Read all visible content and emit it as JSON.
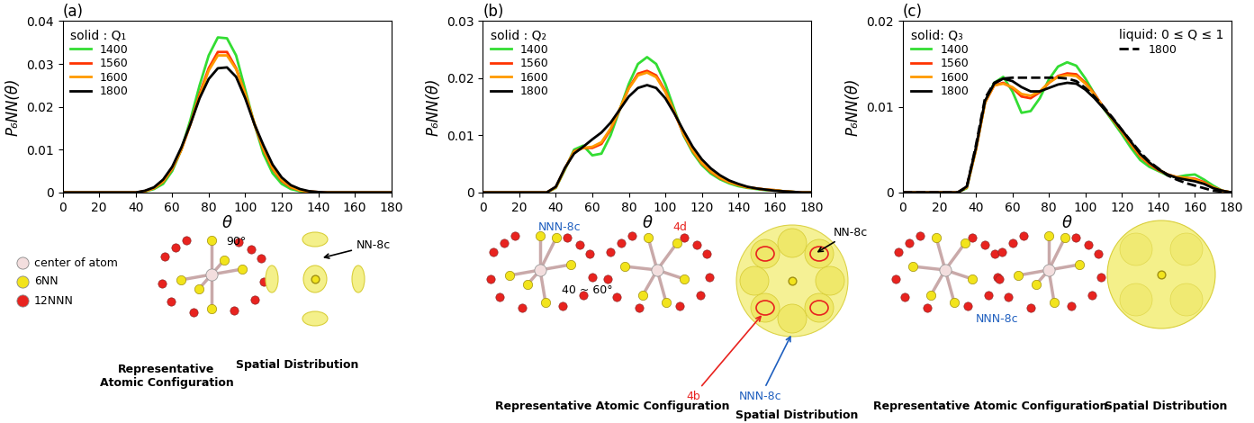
{
  "chart_data": [
    {
      "type": "line",
      "panel": "(a)",
      "x_label": "θ",
      "y_label": "P₆NN(θ)",
      "x": [
        0,
        5,
        10,
        15,
        20,
        25,
        30,
        35,
        40,
        45,
        50,
        55,
        60,
        65,
        70,
        75,
        80,
        85,
        90,
        95,
        100,
        105,
        110,
        115,
        120,
        125,
        130,
        135,
        140,
        145,
        150,
        155,
        160,
        165,
        170,
        175,
        180
      ],
      "xlim": [
        0,
        180
      ],
      "xticks": [
        0,
        20,
        40,
        60,
        80,
        100,
        120,
        140,
        160,
        180
      ],
      "ylim": [
        0,
        0.04
      ],
      "yticks": [
        0,
        0.01,
        0.02,
        0.03,
        0.04
      ],
      "series_groups": [
        {
          "title": "solid : Q₁",
          "legend": "upper left",
          "series": [
            {
              "name": "1400",
              "color": "#33dd33",
              "line_style": "solid",
              "values": [
                0,
                0,
                0,
                0,
                0,
                0,
                0,
                0,
                0,
                0.0002,
                0.0008,
                0.002,
                0.005,
                0.01,
                0.017,
                0.025,
                0.032,
                0.0362,
                0.036,
                0.032,
                0.024,
                0.016,
                0.009,
                0.0045,
                0.002,
                0.0008,
                0.0003,
                0.0001,
                0,
                0,
                0,
                0,
                0,
                0,
                0,
                0,
                0
              ]
            },
            {
              "name": "1560",
              "color": "#ff3300",
              "line_style": "solid",
              "values": [
                0,
                0,
                0,
                0,
                0,
                0,
                0,
                0,
                0,
                0.0003,
                0.001,
                0.0025,
                0.0055,
                0.01,
                0.016,
                0.023,
                0.029,
                0.0328,
                0.0328,
                0.029,
                0.023,
                0.016,
                0.01,
                0.0055,
                0.0027,
                0.0012,
                0.0005,
                0.0002,
                0.0001,
                0,
                0,
                0,
                0,
                0,
                0,
                0,
                0
              ]
            },
            {
              "name": "1600",
              "color": "#ff9900",
              "line_style": "solid",
              "values": [
                0,
                0,
                0,
                0,
                0,
                0,
                0,
                0,
                0,
                0.0003,
                0.001,
                0.0026,
                0.0057,
                0.01,
                0.016,
                0.0225,
                0.0285,
                0.032,
                0.032,
                0.0288,
                0.023,
                0.0162,
                0.0102,
                0.0057,
                0.0029,
                0.0013,
                0.0005,
                0.0002,
                0.0001,
                0,
                0,
                0,
                0,
                0,
                0,
                0,
                0
              ]
            },
            {
              "name": "1800",
              "color": "#000000",
              "line_style": "solid",
              "values": [
                0,
                0,
                0,
                0,
                0,
                0,
                0,
                0,
                0,
                0.0004,
                0.0012,
                0.003,
                0.006,
                0.0105,
                0.016,
                0.022,
                0.0265,
                0.029,
                0.0292,
                0.027,
                0.022,
                0.016,
                0.011,
                0.0065,
                0.0035,
                0.0017,
                0.0008,
                0.0003,
                0.0001,
                0,
                0,
                0,
                0,
                0,
                0,
                0,
                0
              ]
            }
          ]
        }
      ]
    },
    {
      "type": "line",
      "panel": "(b)",
      "x_label": "θ",
      "y_label": "P₆NN(θ)",
      "x": [
        0,
        5,
        10,
        15,
        20,
        25,
        30,
        35,
        40,
        45,
        50,
        55,
        60,
        65,
        70,
        75,
        80,
        85,
        90,
        95,
        100,
        105,
        110,
        115,
        120,
        125,
        130,
        135,
        140,
        145,
        150,
        155,
        160,
        165,
        170,
        175,
        180
      ],
      "xlim": [
        0,
        180
      ],
      "xticks": [
        0,
        20,
        40,
        60,
        80,
        100,
        120,
        140,
        160,
        180
      ],
      "ylim": [
        0,
        0.03
      ],
      "yticks": [
        0,
        0.01,
        0.02,
        0.03
      ],
      "series_groups": [
        {
          "title": "solid : Q₂",
          "legend": "upper left",
          "series": [
            {
              "name": "1400",
              "color": "#33dd33",
              "line_style": "solid",
              "values": [
                0,
                0,
                0,
                0,
                0,
                0,
                0,
                0,
                0.0008,
                0.004,
                0.0075,
                0.0082,
                0.0065,
                0.0068,
                0.01,
                0.0145,
                0.019,
                0.0225,
                0.0237,
                0.0225,
                0.019,
                0.0145,
                0.01,
                0.007,
                0.0048,
                0.0033,
                0.0023,
                0.0016,
                0.0011,
                0.0008,
                0.0006,
                0.0004,
                0.0004,
                0.0002,
                0.0001,
                0,
                0
              ]
            },
            {
              "name": "1560",
              "color": "#ff3300",
              "line_style": "solid",
              "values": [
                0,
                0,
                0,
                0,
                0,
                0,
                0,
                0,
                0.0009,
                0.0042,
                0.0072,
                0.0078,
                0.0078,
                0.0085,
                0.011,
                0.0145,
                0.0183,
                0.0208,
                0.0213,
                0.0205,
                0.0178,
                0.014,
                0.0102,
                0.0073,
                0.0051,
                0.0036,
                0.0025,
                0.0018,
                0.0013,
                0.0009,
                0.0007,
                0.0005,
                0.0004,
                0.0002,
                0.0001,
                0,
                0
              ]
            },
            {
              "name": "1600",
              "color": "#ff9900",
              "line_style": "solid",
              "values": [
                0,
                0,
                0,
                0,
                0,
                0,
                0,
                0,
                0.0009,
                0.0042,
                0.0071,
                0.0078,
                0.008,
                0.0088,
                0.0112,
                0.0146,
                0.0182,
                0.0205,
                0.021,
                0.0202,
                0.0176,
                0.014,
                0.0103,
                0.0074,
                0.0052,
                0.0037,
                0.0026,
                0.0018,
                0.0013,
                0.0009,
                0.0007,
                0.0005,
                0.0004,
                0.0002,
                0.0001,
                0,
                0
              ]
            },
            {
              "name": "1800",
              "color": "#000000",
              "line_style": "solid",
              "values": [
                0,
                0,
                0,
                0,
                0,
                0,
                0,
                0,
                0.001,
                0.0043,
                0.0068,
                0.008,
                0.0093,
                0.0105,
                0.0122,
                0.0145,
                0.0168,
                0.0183,
                0.0188,
                0.0183,
                0.0165,
                0.0138,
                0.0108,
                0.008,
                0.0058,
                0.0042,
                0.003,
                0.0021,
                0.0015,
                0.001,
                0.0007,
                0.0005,
                0.0003,
                0.0002,
                0.0001,
                0,
                0
              ]
            }
          ]
        }
      ]
    },
    {
      "type": "line",
      "panel": "(c)",
      "x_label": "θ",
      "y_label": "P₆NN(θ)",
      "x": [
        0,
        5,
        10,
        15,
        20,
        25,
        30,
        35,
        40,
        45,
        50,
        55,
        60,
        65,
        70,
        75,
        80,
        85,
        90,
        95,
        100,
        105,
        110,
        115,
        120,
        125,
        130,
        135,
        140,
        145,
        150,
        155,
        160,
        165,
        170,
        175,
        180
      ],
      "xlim": [
        0,
        180
      ],
      "xticks": [
        0,
        20,
        40,
        60,
        80,
        100,
        120,
        140,
        160,
        180
      ],
      "ylim": [
        0,
        0.02
      ],
      "yticks": [
        0,
        0.01,
        0.02
      ],
      "series_groups": [
        {
          "title": "solid: Q₃",
          "legend": "upper left",
          "series": [
            {
              "name": "1400",
              "color": "#33dd33",
              "line_style": "solid",
              "values": [
                0,
                0,
                0,
                0,
                0,
                0,
                0,
                0.0005,
                0.005,
                0.0105,
                0.0128,
                0.0135,
                0.0118,
                0.0093,
                0.0095,
                0.011,
                0.0132,
                0.0147,
                0.0152,
                0.0148,
                0.0133,
                0.0115,
                0.0098,
                0.0083,
                0.0068,
                0.0052,
                0.0038,
                0.003,
                0.0025,
                0.002,
                0.0018,
                0.002,
                0.0021,
                0.0015,
                0.0008,
                0.0002,
                0
              ]
            },
            {
              "name": "1560",
              "color": "#ff3300",
              "line_style": "solid",
              "values": [
                0,
                0,
                0,
                0,
                0,
                0,
                0,
                0.0006,
                0.005,
                0.0105,
                0.0125,
                0.0128,
                0.0122,
                0.0112,
                0.011,
                0.0117,
                0.0128,
                0.0136,
                0.0139,
                0.0138,
                0.0128,
                0.0115,
                0.0099,
                0.0085,
                0.0071,
                0.0056,
                0.0042,
                0.0033,
                0.0026,
                0.0021,
                0.0018,
                0.0017,
                0.0016,
                0.0012,
                0.0006,
                0.0002,
                0
              ]
            },
            {
              "name": "1600",
              "color": "#ff9900",
              "line_style": "solid",
              "values": [
                0,
                0,
                0,
                0,
                0,
                0,
                0,
                0.0006,
                0.005,
                0.0105,
                0.0125,
                0.0127,
                0.0123,
                0.0115,
                0.0113,
                0.0118,
                0.0128,
                0.0135,
                0.0137,
                0.0136,
                0.0127,
                0.0114,
                0.0099,
                0.0085,
                0.0072,
                0.0057,
                0.0043,
                0.0034,
                0.0027,
                0.0021,
                0.0018,
                0.0017,
                0.0015,
                0.0011,
                0.0006,
                0.0002,
                0
              ]
            },
            {
              "name": "1800",
              "color": "#000000",
              "line_style": "solid",
              "values": [
                0,
                0,
                0,
                0,
                0,
                0,
                0,
                0.0007,
                0.0052,
                0.0107,
                0.0127,
                0.0133,
                0.013,
                0.0123,
                0.0118,
                0.0118,
                0.0122,
                0.0126,
                0.0128,
                0.0127,
                0.012,
                0.011,
                0.0098,
                0.0086,
                0.0073,
                0.0059,
                0.0045,
                0.0035,
                0.0027,
                0.0021,
                0.0017,
                0.0015,
                0.0013,
                0.001,
                0.0005,
                0.0002,
                0
              ]
            }
          ]
        },
        {
          "title": "liquid: 0 ≤ Q ≤ 1",
          "legend": "upper right",
          "series": [
            {
              "name": "1800",
              "color": "#000000",
              "line_style": "dashed",
              "values": [
                0,
                0,
                0,
                0,
                0,
                0,
                0,
                0.0006,
                0.0055,
                0.011,
                0.0128,
                0.0133,
                0.0134,
                0.0134,
                0.0134,
                0.0134,
                0.0134,
                0.0134,
                0.0133,
                0.013,
                0.0122,
                0.0112,
                0.01,
                0.0087,
                0.0073,
                0.006,
                0.0047,
                0.0036,
                0.0028,
                0.002,
                0.0015,
                0.0011,
                0.0008,
                0.0005,
                0.0002,
                0.0001,
                0
              ]
            }
          ]
        }
      ]
    }
  ],
  "diagram": {
    "key": [
      {
        "label": "center of atom",
        "color": "#f3dede"
      },
      {
        "label": "6NN",
        "color": "#f2e41c"
      },
      {
        "label": "12NNN",
        "color": "#e8231f"
      }
    ],
    "panels": [
      {
        "captions": [
          "Representative\nAtomic Configuration",
          "Spatial Distribution"
        ],
        "notes": [
          {
            "text": "90°",
            "color": "#000000"
          },
          {
            "text": "NN-8c",
            "color": "#000000"
          }
        ]
      },
      {
        "captions": [
          "Representative Atomic Configuration",
          "Spatial Distribution"
        ],
        "notes": [
          {
            "text": "NNN-8c",
            "color": "#1f5fbf"
          },
          {
            "text": "40 ~ 60°",
            "color": "#000000"
          },
          {
            "text": "4d",
            "color": "#e8231f"
          },
          {
            "text": "NN-8c",
            "color": "#000000"
          },
          {
            "text": "4b",
            "color": "#e8231f"
          },
          {
            "text": "NNN-8c",
            "color": "#1f5fbf"
          }
        ]
      },
      {
        "captions": [
          "Representative Atomic Configuration",
          "Spatial Distribution"
        ],
        "notes": [
          {
            "text": "NNN-8c",
            "color": "#1f5fbf"
          }
        ]
      }
    ]
  }
}
